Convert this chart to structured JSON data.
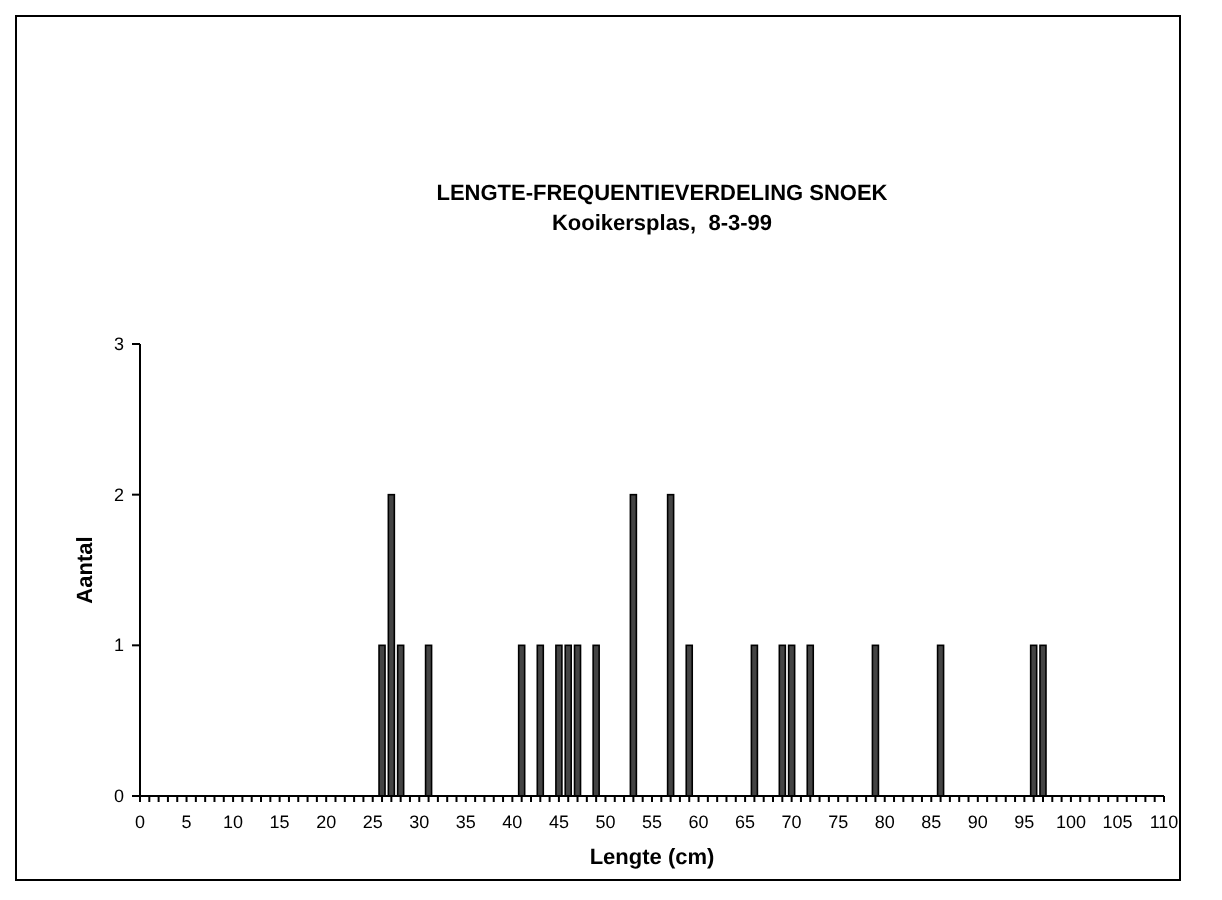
{
  "chart_data": {
    "type": "bar",
    "title": "LENGTE-FREQUENTIEVERDELING SNOEK",
    "subtitle": "Kooikersplas,  8-3-99",
    "xlabel": "Lengte (cm)",
    "ylabel": "Aantal",
    "categories": [
      "0",
      null,
      null,
      null,
      null,
      "5",
      null,
      null,
      null,
      null,
      "10",
      null,
      null,
      null,
      null,
      "15",
      null,
      null,
      null,
      null,
      "20",
      null,
      null,
      null,
      null,
      "25",
      null,
      null,
      null,
      null,
      "30",
      null,
      null,
      null,
      null,
      "35",
      null,
      null,
      null,
      null,
      "40",
      null,
      null,
      null,
      null,
      "45",
      null,
      null,
      null,
      null,
      "50",
      null,
      null,
      null,
      null,
      "55",
      null,
      null,
      null,
      null,
      "60",
      null,
      null,
      null,
      null,
      "65",
      null,
      null,
      null,
      null,
      "70",
      null,
      null,
      null,
      null,
      "75",
      null,
      null,
      null,
      null,
      "80",
      null,
      null,
      null,
      null,
      "85",
      null,
      null,
      null,
      null,
      "90",
      null,
      null,
      null,
      null,
      "95",
      null,
      null,
      null,
      null,
      "100",
      null,
      null,
      null,
      null,
      "105",
      null,
      null,
      null,
      null,
      "110"
    ],
    "values": [
      0,
      0,
      0,
      0,
      0,
      0,
      0,
      0,
      0,
      0,
      0,
      0,
      0,
      0,
      0,
      0,
      0,
      0,
      0,
      0,
      0,
      0,
      0,
      0,
      0,
      0,
      1,
      2,
      1,
      0,
      0,
      1,
      0,
      0,
      0,
      0,
      0,
      0,
      0,
      0,
      0,
      1,
      0,
      1,
      0,
      1,
      1,
      1,
      0,
      1,
      0,
      0,
      0,
      2,
      0,
      0,
      0,
      2,
      0,
      1,
      0,
      0,
      0,
      0,
      0,
      0,
      1,
      0,
      0,
      1,
      1,
      0,
      1,
      0,
      0,
      0,
      0,
      0,
      0,
      1,
      0,
      0,
      0,
      0,
      0,
      0,
      1,
      0,
      0,
      0,
      0,
      0,
      0,
      0,
      0,
      0,
      1,
      1,
      0,
      0,
      0,
      0,
      0,
      0,
      0,
      0,
      0,
      0,
      0,
      0,
      0
    ],
    "color": "#444444",
    "ylim": [
      0,
      3
    ],
    "yticks": [
      0,
      1,
      2,
      3
    ],
    "grid": false
  }
}
